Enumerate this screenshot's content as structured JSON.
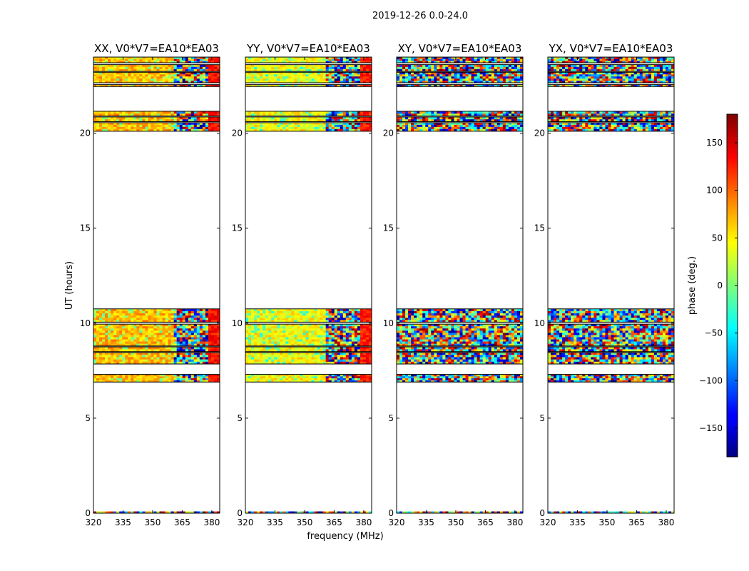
{
  "figure": {
    "suptitle": "2019-12-26 0.0-24.0",
    "xlabel": "frequency (MHz)",
    "ylabel": "UT (hours)"
  },
  "chart_data": {
    "type": "heatmap",
    "x_ticks": [
      320,
      335,
      350,
      365,
      380
    ],
    "y_ticks": [
      0,
      5,
      10,
      15,
      20
    ],
    "xlim": [
      320,
      384
    ],
    "ylim": [
      0,
      24
    ],
    "data_bands_ut": [
      [
        6.9,
        7.3
      ],
      [
        7.85,
        8.45
      ],
      [
        8.5,
        8.75
      ],
      [
        8.8,
        9.95
      ],
      [
        10.05,
        10.75
      ],
      [
        20.1,
        20.55
      ],
      [
        20.6,
        20.85
      ],
      [
        20.9,
        21.15
      ],
      [
        22.45,
        22.55
      ],
      [
        22.65,
        23.2
      ],
      [
        23.25,
        23.6
      ],
      [
        23.7,
        24.0
      ]
    ],
    "panels": [
      {
        "title": "XX, V0*V7=EA10*EA03",
        "pol": "XX",
        "baseline": "V0*V7=EA10*EA03",
        "mode": "ordered",
        "low_phase": 70,
        "high_phase": 130,
        "break_mhz": 361
      },
      {
        "title": "YY, V0*V7=EA10*EA03",
        "pol": "YY",
        "baseline": "V0*V7=EA10*EA03",
        "mode": "ordered",
        "low_phase": 45,
        "high_phase": 125,
        "break_mhz": 361
      },
      {
        "title": "XY, V0*V7=EA10*EA03",
        "pol": "XY",
        "baseline": "V0*V7=EA10*EA03",
        "mode": "noise"
      },
      {
        "title": "YX, V0*V7=EA10*EA03",
        "pol": "YX",
        "baseline": "V0*V7=EA10*EA03",
        "mode": "noise"
      }
    ],
    "colorbar": {
      "label": "phase (deg.)",
      "range": [
        -180,
        180
      ],
      "ticks": [
        150,
        100,
        50,
        0,
        -50,
        -100,
        -150
      ],
      "tick_labels": [
        "150",
        "100",
        "50",
        "0",
        "−50",
        "−100",
        "−150"
      ],
      "colormap": "jet"
    }
  }
}
